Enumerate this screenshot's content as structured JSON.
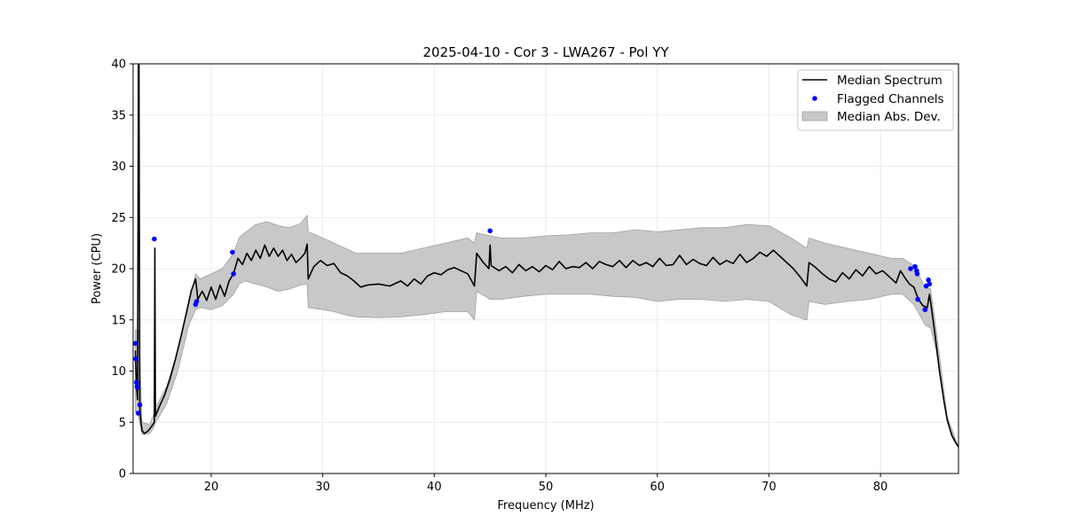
{
  "chart_data": {
    "type": "line",
    "title": "2025-04-10 - Cor 3 - LWA267 - Pol YY",
    "xlabel": "Frequency (MHz)",
    "ylabel": "Power (CPU)",
    "xlim": [
      13,
      87
    ],
    "ylim": [
      0,
      40
    ],
    "xticks": [
      20,
      30,
      40,
      50,
      60,
      70,
      80
    ],
    "yticks": [
      0,
      5,
      10,
      15,
      20,
      25,
      30,
      35,
      40
    ],
    "grid": true,
    "legend_position": "top-right",
    "colors": {
      "median": "#000000",
      "flagged": "#0000ff",
      "mad_fill": "#c8c8c8",
      "mad_edge": "#a0a0a0"
    },
    "series": [
      {
        "name": "Median Spectrum",
        "kind": "line",
        "points": [
          [
            13.2,
            12.0
          ],
          [
            13.3,
            8.5
          ],
          [
            13.4,
            7.2
          ],
          [
            13.5,
            50.0
          ],
          [
            13.6,
            6.5
          ],
          [
            13.7,
            5.0
          ],
          [
            13.8,
            4.2
          ],
          [
            14.0,
            3.9
          ],
          [
            14.3,
            4.1
          ],
          [
            14.6,
            4.5
          ],
          [
            14.9,
            5.0
          ],
          [
            14.95,
            22.0
          ],
          [
            15.0,
            5.6
          ],
          [
            15.3,
            6.4
          ],
          [
            15.8,
            7.6
          ],
          [
            16.3,
            9.2
          ],
          [
            16.8,
            11.2
          ],
          [
            17.3,
            13.4
          ],
          [
            17.8,
            15.8
          ],
          [
            18.2,
            17.8
          ],
          [
            18.6,
            19.0
          ],
          [
            18.8,
            17.0
          ],
          [
            19.2,
            17.8
          ],
          [
            19.6,
            16.9
          ],
          [
            20.0,
            18.2
          ],
          [
            20.4,
            17.0
          ],
          [
            20.8,
            18.4
          ],
          [
            21.2,
            17.3
          ],
          [
            21.6,
            18.8
          ],
          [
            22.0,
            19.5
          ],
          [
            22.4,
            21.0
          ],
          [
            22.8,
            20.4
          ],
          [
            23.2,
            21.5
          ],
          [
            23.6,
            20.8
          ],
          [
            24.0,
            21.8
          ],
          [
            24.4,
            21.0
          ],
          [
            24.8,
            22.3
          ],
          [
            25.2,
            21.2
          ],
          [
            25.6,
            22.0
          ],
          [
            26.0,
            21.2
          ],
          [
            26.4,
            21.8
          ],
          [
            26.8,
            20.8
          ],
          [
            27.2,
            21.4
          ],
          [
            27.6,
            20.6
          ],
          [
            28.0,
            21.0
          ],
          [
            28.4,
            21.5
          ],
          [
            28.6,
            22.4
          ],
          [
            28.7,
            19.0
          ],
          [
            29.2,
            20.2
          ],
          [
            29.8,
            20.8
          ],
          [
            30.4,
            20.3
          ],
          [
            31.0,
            20.5
          ],
          [
            31.6,
            19.6
          ],
          [
            32.2,
            19.3
          ],
          [
            32.8,
            18.8
          ],
          [
            33.4,
            18.2
          ],
          [
            34.0,
            18.4
          ],
          [
            35.0,
            18.5
          ],
          [
            36.0,
            18.3
          ],
          [
            37.0,
            18.8
          ],
          [
            37.6,
            18.3
          ],
          [
            38.2,
            19.0
          ],
          [
            38.8,
            18.5
          ],
          [
            39.4,
            19.3
          ],
          [
            40.0,
            19.6
          ],
          [
            40.6,
            19.4
          ],
          [
            41.2,
            19.9
          ],
          [
            41.8,
            20.1
          ],
          [
            42.4,
            19.8
          ],
          [
            43.0,
            19.5
          ],
          [
            43.6,
            18.3
          ],
          [
            43.8,
            21.5
          ],
          [
            44.4,
            20.6
          ],
          [
            44.9,
            20.0
          ],
          [
            45.0,
            22.3
          ],
          [
            45.1,
            20.3
          ],
          [
            45.8,
            19.8
          ],
          [
            46.4,
            20.2
          ],
          [
            47.0,
            19.6
          ],
          [
            47.6,
            20.4
          ],
          [
            48.2,
            19.8
          ],
          [
            48.8,
            20.2
          ],
          [
            49.4,
            19.7
          ],
          [
            50.0,
            20.3
          ],
          [
            50.6,
            19.9
          ],
          [
            51.2,
            20.7
          ],
          [
            51.8,
            20.0
          ],
          [
            52.4,
            20.2
          ],
          [
            53.0,
            20.1
          ],
          [
            53.6,
            20.6
          ],
          [
            54.2,
            20.0
          ],
          [
            54.8,
            20.7
          ],
          [
            55.4,
            20.4
          ],
          [
            56.0,
            20.2
          ],
          [
            56.6,
            20.8
          ],
          [
            57.2,
            20.1
          ],
          [
            57.8,
            20.8
          ],
          [
            58.4,
            20.3
          ],
          [
            59.0,
            20.6
          ],
          [
            59.6,
            20.2
          ],
          [
            60.2,
            21.0
          ],
          [
            60.8,
            20.3
          ],
          [
            61.4,
            20.4
          ],
          [
            62.0,
            21.3
          ],
          [
            62.6,
            20.4
          ],
          [
            63.2,
            20.9
          ],
          [
            63.8,
            20.5
          ],
          [
            64.4,
            20.3
          ],
          [
            65.0,
            21.1
          ],
          [
            65.6,
            20.4
          ],
          [
            66.2,
            20.8
          ],
          [
            66.8,
            20.5
          ],
          [
            67.4,
            21.4
          ],
          [
            68.0,
            20.6
          ],
          [
            68.6,
            21.0
          ],
          [
            69.2,
            21.6
          ],
          [
            69.8,
            21.2
          ],
          [
            70.4,
            21.8
          ],
          [
            71.0,
            21.2
          ],
          [
            71.6,
            20.6
          ],
          [
            72.2,
            20.0
          ],
          [
            72.8,
            19.2
          ],
          [
            73.4,
            18.3
          ],
          [
            73.6,
            20.6
          ],
          [
            74.2,
            20.1
          ],
          [
            74.8,
            19.5
          ],
          [
            75.4,
            19.0
          ],
          [
            76.0,
            18.7
          ],
          [
            76.6,
            19.6
          ],
          [
            77.2,
            19.0
          ],
          [
            77.8,
            19.9
          ],
          [
            78.4,
            19.3
          ],
          [
            79.0,
            20.2
          ],
          [
            79.6,
            19.5
          ],
          [
            80.2,
            19.8
          ],
          [
            80.8,
            19.2
          ],
          [
            81.4,
            18.6
          ],
          [
            81.8,
            19.8
          ],
          [
            82.2,
            19.1
          ],
          [
            82.6,
            18.5
          ],
          [
            83.0,
            18.2
          ],
          [
            83.4,
            17.0
          ],
          [
            83.8,
            16.4
          ],
          [
            84.2,
            16.2
          ],
          [
            84.4,
            17.5
          ],
          [
            84.6,
            16.0
          ],
          [
            84.9,
            13.5
          ],
          [
            85.3,
            10.0
          ],
          [
            85.7,
            7.0
          ],
          [
            86.0,
            5.2
          ],
          [
            86.4,
            3.7
          ],
          [
            86.8,
            2.9
          ],
          [
            87.0,
            2.6
          ]
        ]
      },
      {
        "name": "Flagged Channels",
        "kind": "scatter",
        "points": [
          [
            13.2,
            12.7
          ],
          [
            13.25,
            11.2
          ],
          [
            13.3,
            8.9
          ],
          [
            13.35,
            8.5
          ],
          [
            13.4,
            8.4
          ],
          [
            13.45,
            5.9
          ],
          [
            13.6,
            6.7
          ],
          [
            14.9,
            22.9
          ],
          [
            18.6,
            16.5
          ],
          [
            18.7,
            16.8
          ],
          [
            21.9,
            21.6
          ],
          [
            22.0,
            19.5
          ],
          [
            45.0,
            23.7
          ],
          [
            82.7,
            20.0
          ],
          [
            83.1,
            20.2
          ],
          [
            83.25,
            19.8
          ],
          [
            83.3,
            19.5
          ],
          [
            83.35,
            17.0
          ],
          [
            84.0,
            16.0
          ],
          [
            84.1,
            18.3
          ],
          [
            84.3,
            18.9
          ],
          [
            84.4,
            18.5
          ]
        ]
      },
      {
        "name": "Median Abs. Dev.",
        "kind": "band",
        "x": [
          13.2,
          13.5,
          13.8,
          14.5,
          14.9,
          15.0,
          15.3,
          16.0,
          17.0,
          18.0,
          18.6,
          19.0,
          20.0,
          21.0,
          22.0,
          22.5,
          23.0,
          24.0,
          25.0,
          26.0,
          27.0,
          28.0,
          28.6,
          28.7,
          30.0,
          31.0,
          32.0,
          33.0,
          35.0,
          37.0,
          39.0,
          41.0,
          43.0,
          43.6,
          43.8,
          45.0,
          46.0,
          48.0,
          50.0,
          52.0,
          54.0,
          56.0,
          58.0,
          60.0,
          62.0,
          64.0,
          66.0,
          68.0,
          70.0,
          72.0,
          73.4,
          73.6,
          75.0,
          77.0,
          79.0,
          81.0,
          82.0,
          83.0,
          84.0,
          84.5,
          85.0,
          86.0,
          87.0
        ],
        "upper": [
          14.0,
          14.0,
          5.0,
          4.8,
          6.0,
          6.5,
          7.0,
          8.5,
          12.0,
          16.5,
          19.5,
          19.0,
          19.5,
          20.0,
          21.5,
          23.0,
          23.5,
          24.3,
          24.6,
          24.2,
          24.0,
          24.4,
          25.2,
          23.6,
          23.0,
          22.5,
          22.0,
          21.5,
          21.5,
          21.5,
          22.0,
          22.5,
          23.0,
          22.5,
          23.5,
          23.2,
          23.0,
          23.0,
          23.2,
          23.3,
          23.5,
          23.5,
          23.8,
          23.6,
          23.8,
          24.0,
          24.0,
          24.3,
          24.2,
          23.0,
          22.0,
          23.0,
          22.5,
          22.0,
          21.5,
          21.0,
          21.0,
          20.3,
          18.2,
          18.0,
          14.0,
          5.5,
          2.6
        ],
        "lower": [
          6.0,
          5.5,
          3.8,
          3.9,
          4.6,
          5.0,
          5.5,
          6.8,
          10.0,
          14.5,
          16.0,
          16.2,
          16.0,
          16.4,
          17.5,
          18.5,
          18.8,
          18.5,
          18.2,
          17.8,
          18.0,
          18.4,
          18.5,
          16.2,
          16.0,
          15.8,
          15.5,
          15.3,
          15.2,
          15.3,
          15.5,
          15.8,
          15.8,
          15.0,
          17.8,
          17.0,
          17.0,
          17.3,
          17.5,
          17.5,
          17.5,
          17.3,
          17.2,
          16.8,
          17.0,
          17.0,
          16.8,
          17.0,
          16.8,
          15.5,
          15.0,
          16.8,
          16.5,
          16.8,
          17.0,
          17.5,
          17.5,
          16.5,
          14.5,
          14.2,
          12.0,
          5.0,
          2.5
        ]
      }
    ]
  }
}
